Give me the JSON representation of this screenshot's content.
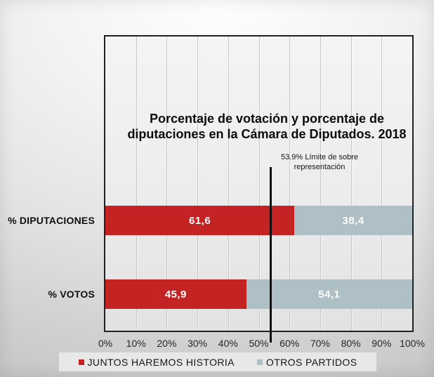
{
  "slide": {
    "title": {
      "line1": "Porcentaje de votación y porcentaje de",
      "line2": "diputaciones en la Cámara de Diputados. 2018"
    },
    "annotation": {
      "line1": "53.9% Límite de sobre",
      "line2": "representación"
    }
  },
  "chart_data": {
    "type": "bar",
    "orientation": "horizontal",
    "stacked": true,
    "title": "Porcentaje de votación y porcentaje de diputaciones en la Cámara de Diputados. 2018",
    "categories": [
      "% DIPUTACIONES",
      "% VOTOS"
    ],
    "series": [
      {
        "name": "JUNTOS HAREMOS HISTORIA",
        "color": "#c32423",
        "values": [
          61.6,
          45.9
        ],
        "value_labels": [
          "61,6",
          "45,9"
        ]
      },
      {
        "name": "OTROS PARTIDOS",
        "color": "#aebfc5",
        "values": [
          38.4,
          54.1
        ],
        "value_labels": [
          "38,4",
          "54,1"
        ]
      }
    ],
    "x_axis": {
      "min": 0,
      "max": 100,
      "tick_labels": [
        "0%",
        "10%",
        "20%",
        "30%",
        "40%",
        "50%",
        "60%",
        "70%",
        "80%",
        "90%",
        "100%"
      ]
    },
    "reference_line": {
      "value": 53.9,
      "label": "53.9% Límite de sobre representación",
      "color": "#101010"
    },
    "legend_position": "bottom",
    "grid": "vertical",
    "value_label_color": "#ffffff",
    "colors": {
      "plot_border": "#222222",
      "gridline": "#c7c7c7",
      "legend_background": "#e8e8e8",
      "text": "#111111"
    }
  }
}
